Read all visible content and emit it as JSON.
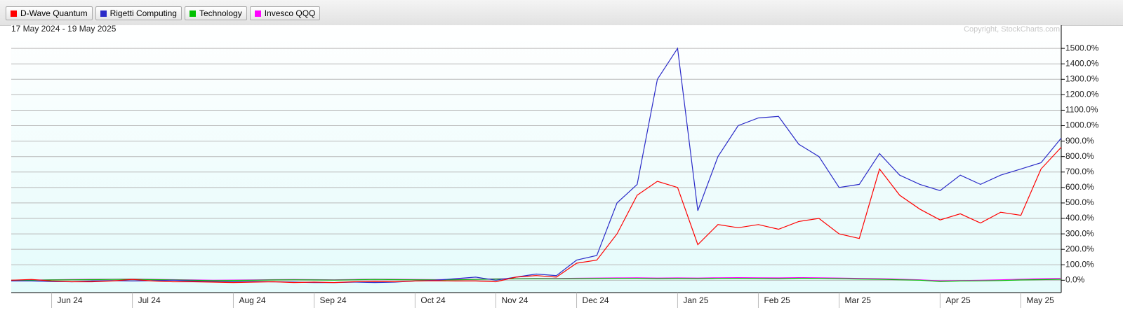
{
  "chart_data": {
    "type": "line",
    "subtitle": "17 May 2024 - 19 May 2025",
    "annotation": "Copyright, StockCharts.com",
    "categories": [
      null,
      null,
      "Jun 24",
      null,
      null,
      null,
      "Jul 24",
      null,
      null,
      null,
      null,
      "Aug 24",
      null,
      null,
      null,
      "Sep 24",
      null,
      null,
      null,
      null,
      "Oct 24",
      null,
      null,
      null,
      "Nov 24",
      null,
      null,
      null,
      "Dec 24",
      null,
      null,
      null,
      null,
      "Jan 25",
      null,
      null,
      null,
      "Feb 25",
      null,
      null,
      null,
      "Mar 25",
      null,
      null,
      null,
      null,
      "Apr 25",
      null,
      null,
      null,
      "May 25",
      null,
      null
    ],
    "series": [
      {
        "name": "D-Wave Quantum",
        "color": "#ff0000",
        "values": [
          0,
          5,
          -5,
          -10,
          -10,
          -5,
          5,
          -5,
          -10,
          -10,
          -12,
          -15,
          -12,
          -10,
          -15,
          -12,
          -15,
          -10,
          -8,
          -10,
          -5,
          -3,
          -5,
          -5,
          -10,
          20,
          30,
          20,
          110,
          130,
          300,
          550,
          640,
          600,
          230,
          360,
          340,
          360,
          330,
          380,
          400,
          300,
          270,
          720,
          550,
          460,
          390,
          430,
          370,
          440,
          420,
          720,
          860
        ]
      },
      {
        "name": "Rigetti Computing",
        "color": "#2b2bc8",
        "values": [
          -5,
          -5,
          -8,
          -10,
          -5,
          -3,
          -5,
          -3,
          0,
          -5,
          -8,
          -10,
          -8,
          -10,
          -12,
          -15,
          -15,
          -12,
          -15,
          -12,
          -5,
          0,
          10,
          20,
          0,
          20,
          40,
          30,
          130,
          160,
          500,
          620,
          1300,
          1500,
          450,
          800,
          1000,
          1050,
          1060,
          880,
          800,
          600,
          620,
          820,
          680,
          620,
          580,
          680,
          620,
          680,
          720,
          760,
          920
        ]
      },
      {
        "name": "Technology",
        "color": "#00c000",
        "values": [
          0,
          0,
          2,
          3,
          4,
          5,
          6,
          4,
          2,
          0,
          -2,
          -1,
          0,
          2,
          3,
          2,
          1,
          3,
          5,
          4,
          3,
          2,
          3,
          5,
          8,
          9,
          10,
          9,
          10,
          11,
          12,
          12,
          10,
          11,
          10,
          12,
          12,
          11,
          10,
          13,
          12,
          10,
          8,
          6,
          3,
          0,
          -8,
          -5,
          -4,
          -2,
          2,
          4,
          6
        ]
      },
      {
        "name": "Invesco QQQ",
        "color": "#ff00ff",
        "values": [
          0,
          1,
          3,
          5,
          6,
          7,
          8,
          6,
          4,
          2,
          0,
          1,
          2,
          4,
          5,
          4,
          3,
          5,
          7,
          6,
          5,
          4,
          5,
          7,
          9,
          10,
          12,
          11,
          13,
          14,
          15,
          16,
          14,
          15,
          14,
          16,
          17,
          16,
          15,
          17,
          16,
          14,
          12,
          10,
          7,
          3,
          -4,
          -2,
          0,
          3,
          7,
          10,
          12
        ]
      }
    ],
    "ylim": [
      -80,
      1650
    ],
    "yticks": [
      {
        "value": 0,
        "label": "0.0%"
      },
      {
        "value": 100,
        "label": "100.0%"
      },
      {
        "value": 200,
        "label": "200.0%"
      },
      {
        "value": 300,
        "label": "300.0%"
      },
      {
        "value": 400,
        "label": "400.0%"
      },
      {
        "value": 500,
        "label": "500.0%"
      },
      {
        "value": 600,
        "label": "600.0%"
      },
      {
        "value": 700,
        "label": "700.0%"
      },
      {
        "value": 800,
        "label": "800.0%"
      },
      {
        "value": 900,
        "label": "900.0%"
      },
      {
        "value": 1000,
        "label": "1000.0%"
      },
      {
        "value": 1100,
        "label": "1100.0%"
      },
      {
        "value": 1200,
        "label": "1200.0%"
      },
      {
        "value": 1300,
        "label": "1300.0%"
      },
      {
        "value": 1400,
        "label": "1400.0%"
      },
      {
        "value": 1500,
        "label": "1500.0%"
      }
    ],
    "grid": true
  }
}
